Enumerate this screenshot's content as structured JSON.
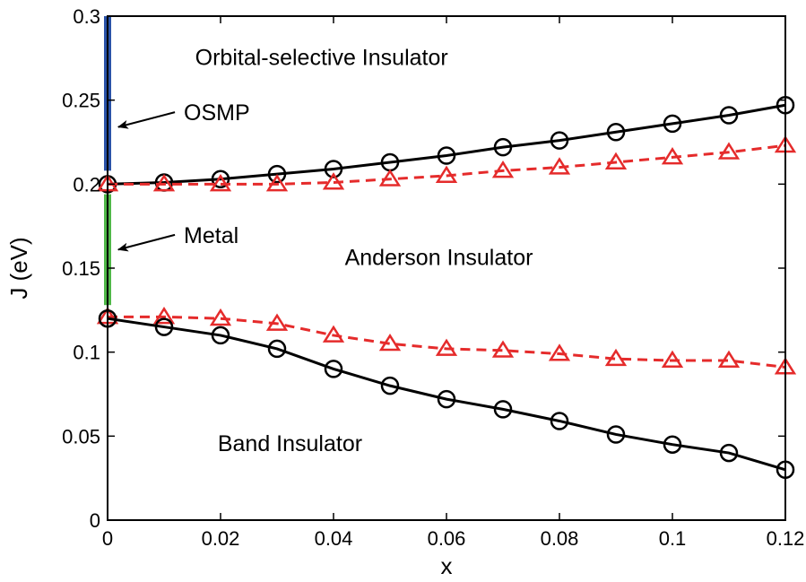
{
  "chart_data": {
    "type": "line",
    "xlabel": "x",
    "ylabel": "J (eV)",
    "xlim": [
      0,
      0.12
    ],
    "ylim": [
      0,
      0.3
    ],
    "x_ticks": [
      "0",
      "0.02",
      "0.04",
      "0.06",
      "0.08",
      "0.1",
      "0.12"
    ],
    "y_ticks": [
      "0",
      "0.05",
      "0.1",
      "0.15",
      "0.2",
      "0.25",
      "0.3"
    ],
    "grid": false,
    "x": [
      0,
      0.01,
      0.02,
      0.03,
      0.04,
      0.05,
      0.06,
      0.07,
      0.08,
      0.09,
      0.1,
      0.11,
      0.12
    ],
    "series": [
      {
        "marker": "circle",
        "style": "solid",
        "color": "#000000",
        "values": [
          0.2,
          0.201,
          0.203,
          0.206,
          0.209,
          0.213,
          0.217,
          0.222,
          0.226,
          0.231,
          0.236,
          0.241,
          0.247
        ]
      },
      {
        "marker": "triangle",
        "style": "dashed",
        "color": "#e52b2b",
        "values": [
          0.2,
          0.2,
          0.2,
          0.2,
          0.201,
          0.203,
          0.205,
          0.208,
          0.21,
          0.213,
          0.216,
          0.219,
          0.223
        ]
      },
      {
        "marker": "triangle",
        "style": "dashed",
        "color": "#e52b2b",
        "values": [
          0.121,
          0.121,
          0.12,
          0.117,
          0.11,
          0.105,
          0.102,
          0.101,
          0.099,
          0.096,
          0.095,
          0.095,
          0.091
        ]
      },
      {
        "marker": "circle",
        "style": "solid",
        "color": "#000000",
        "values": [
          0.12,
          0.115,
          0.11,
          0.102,
          0.09,
          0.08,
          0.072,
          0.066,
          0.059,
          0.051,
          0.045,
          0.04,
          0.03
        ]
      }
    ],
    "bars": [
      {
        "x": 0,
        "from": 0.208,
        "to": 0.3,
        "color": "#2a52a8"
      },
      {
        "x": 0,
        "from": 0.128,
        "to": 0.194,
        "color": "#4fb848"
      }
    ],
    "annotations": [
      {
        "text": "Orbital-selective Insulator",
        "x": 0.0155,
        "y": 0.271,
        "arrow": false
      },
      {
        "text": "OSMP",
        "x": 0.0135,
        "y": 0.238,
        "arrow": true,
        "arrow_to": [
          0.0003,
          0.234
        ]
      },
      {
        "text": "Metal",
        "x": 0.0135,
        "y": 0.165,
        "arrow": true,
        "arrow_to": [
          0.0003,
          0.161
        ]
      },
      {
        "text": "Anderson Insulator",
        "x": 0.042,
        "y": 0.152,
        "arrow": false
      },
      {
        "text": "Band Insulator",
        "x": 0.0195,
        "y": 0.041,
        "arrow": false
      }
    ]
  }
}
